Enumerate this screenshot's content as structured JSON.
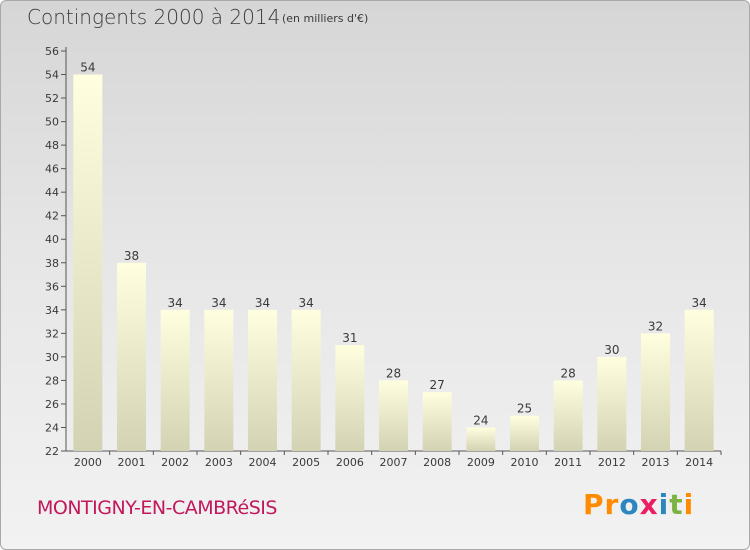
{
  "header": {
    "title": "Contingents 2000 à 2014",
    "subtitle": "(en milliers d'€)"
  },
  "footer": {
    "commune": "MONTIGNY-EN-CAMBRéSIS",
    "logo": {
      "letters": [
        "P",
        "r",
        "o",
        "x",
        "i",
        "t",
        "i"
      ]
    }
  },
  "colors": {
    "bar_top": "#ffffe0",
    "bar_bottom": "#d3d3b4",
    "commune_text": "#c2185b",
    "logo_letters": [
      "#ff8c00",
      "#ff8c00",
      "#2e86c1",
      "#e91e63",
      "#2e86c1",
      "#7cb342",
      "#ff8c00"
    ]
  },
  "chart_data": {
    "type": "bar",
    "title": "Contingents 2000 à 2014",
    "subtitle": "(en milliers d'€)",
    "categories": [
      "2000",
      "2001",
      "2002",
      "2003",
      "2004",
      "2005",
      "2006",
      "2007",
      "2008",
      "2009",
      "2010",
      "2011",
      "2012",
      "2013",
      "2014"
    ],
    "values": [
      54,
      38,
      34,
      34,
      34,
      34,
      31,
      28,
      27,
      24,
      25,
      28,
      30,
      32,
      34
    ],
    "ylim": [
      22,
      56
    ],
    "yticks": [
      22,
      24,
      26,
      28,
      30,
      32,
      34,
      36,
      38,
      40,
      42,
      44,
      46,
      48,
      50,
      52,
      54,
      56
    ],
    "xlabel": "",
    "ylabel": "",
    "grid": false,
    "data_labels": true
  }
}
